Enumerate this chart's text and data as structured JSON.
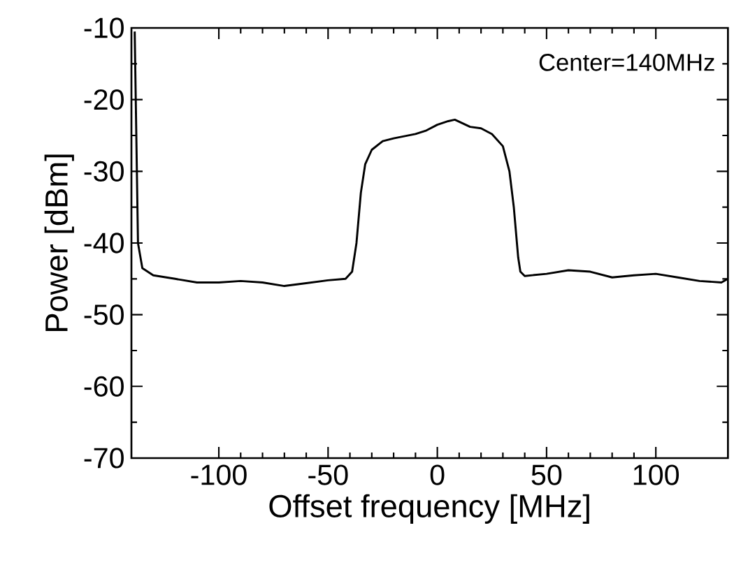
{
  "chart_data": {
    "type": "line",
    "xlabel": "Offset frequency [MHz]",
    "ylabel": "Power [dBm]",
    "annotations": [
      "Center=140MHz"
    ],
    "xlim": [
      -140,
      133
    ],
    "ylim": [
      -70,
      -10
    ],
    "xticks": [
      -100,
      -50,
      0,
      50,
      100
    ],
    "yticks": [
      -70,
      -60,
      -50,
      -40,
      -30,
      -20,
      -10
    ],
    "grid": false,
    "marker": "none",
    "line_style": "solid",
    "series": [
      {
        "color": "#000000",
        "x": [
          -138.5,
          -137,
          -135,
          -130,
          -120,
          -110,
          -100,
          -90,
          -80,
          -70,
          -60,
          -50,
          -42,
          -39,
          -37,
          -35,
          -33,
          -30,
          -25,
          -20,
          -10,
          -5,
          0,
          5,
          8,
          15,
          20,
          25,
          30,
          33,
          35,
          37,
          38,
          40,
          50,
          60,
          70,
          80,
          90,
          100,
          110,
          120,
          130,
          133
        ],
        "values": [
          -10.5,
          -40,
          -43.5,
          -44.5,
          -45,
          -45.5,
          -45.5,
          -45.3,
          -45.5,
          -46,
          -45.6,
          -45.2,
          -45,
          -44,
          -40,
          -33,
          -29,
          -27,
          -25.8,
          -25.4,
          -24.8,
          -24.3,
          -23.5,
          -23,
          -22.8,
          -23.8,
          -24,
          -24.8,
          -26.5,
          -30,
          -35,
          -42,
          -44,
          -44.6,
          -44.3,
          -43.8,
          -44,
          -44.8,
          -44.5,
          -44.3,
          -44.8,
          -45.3,
          -45.5,
          -45
        ]
      }
    ]
  }
}
